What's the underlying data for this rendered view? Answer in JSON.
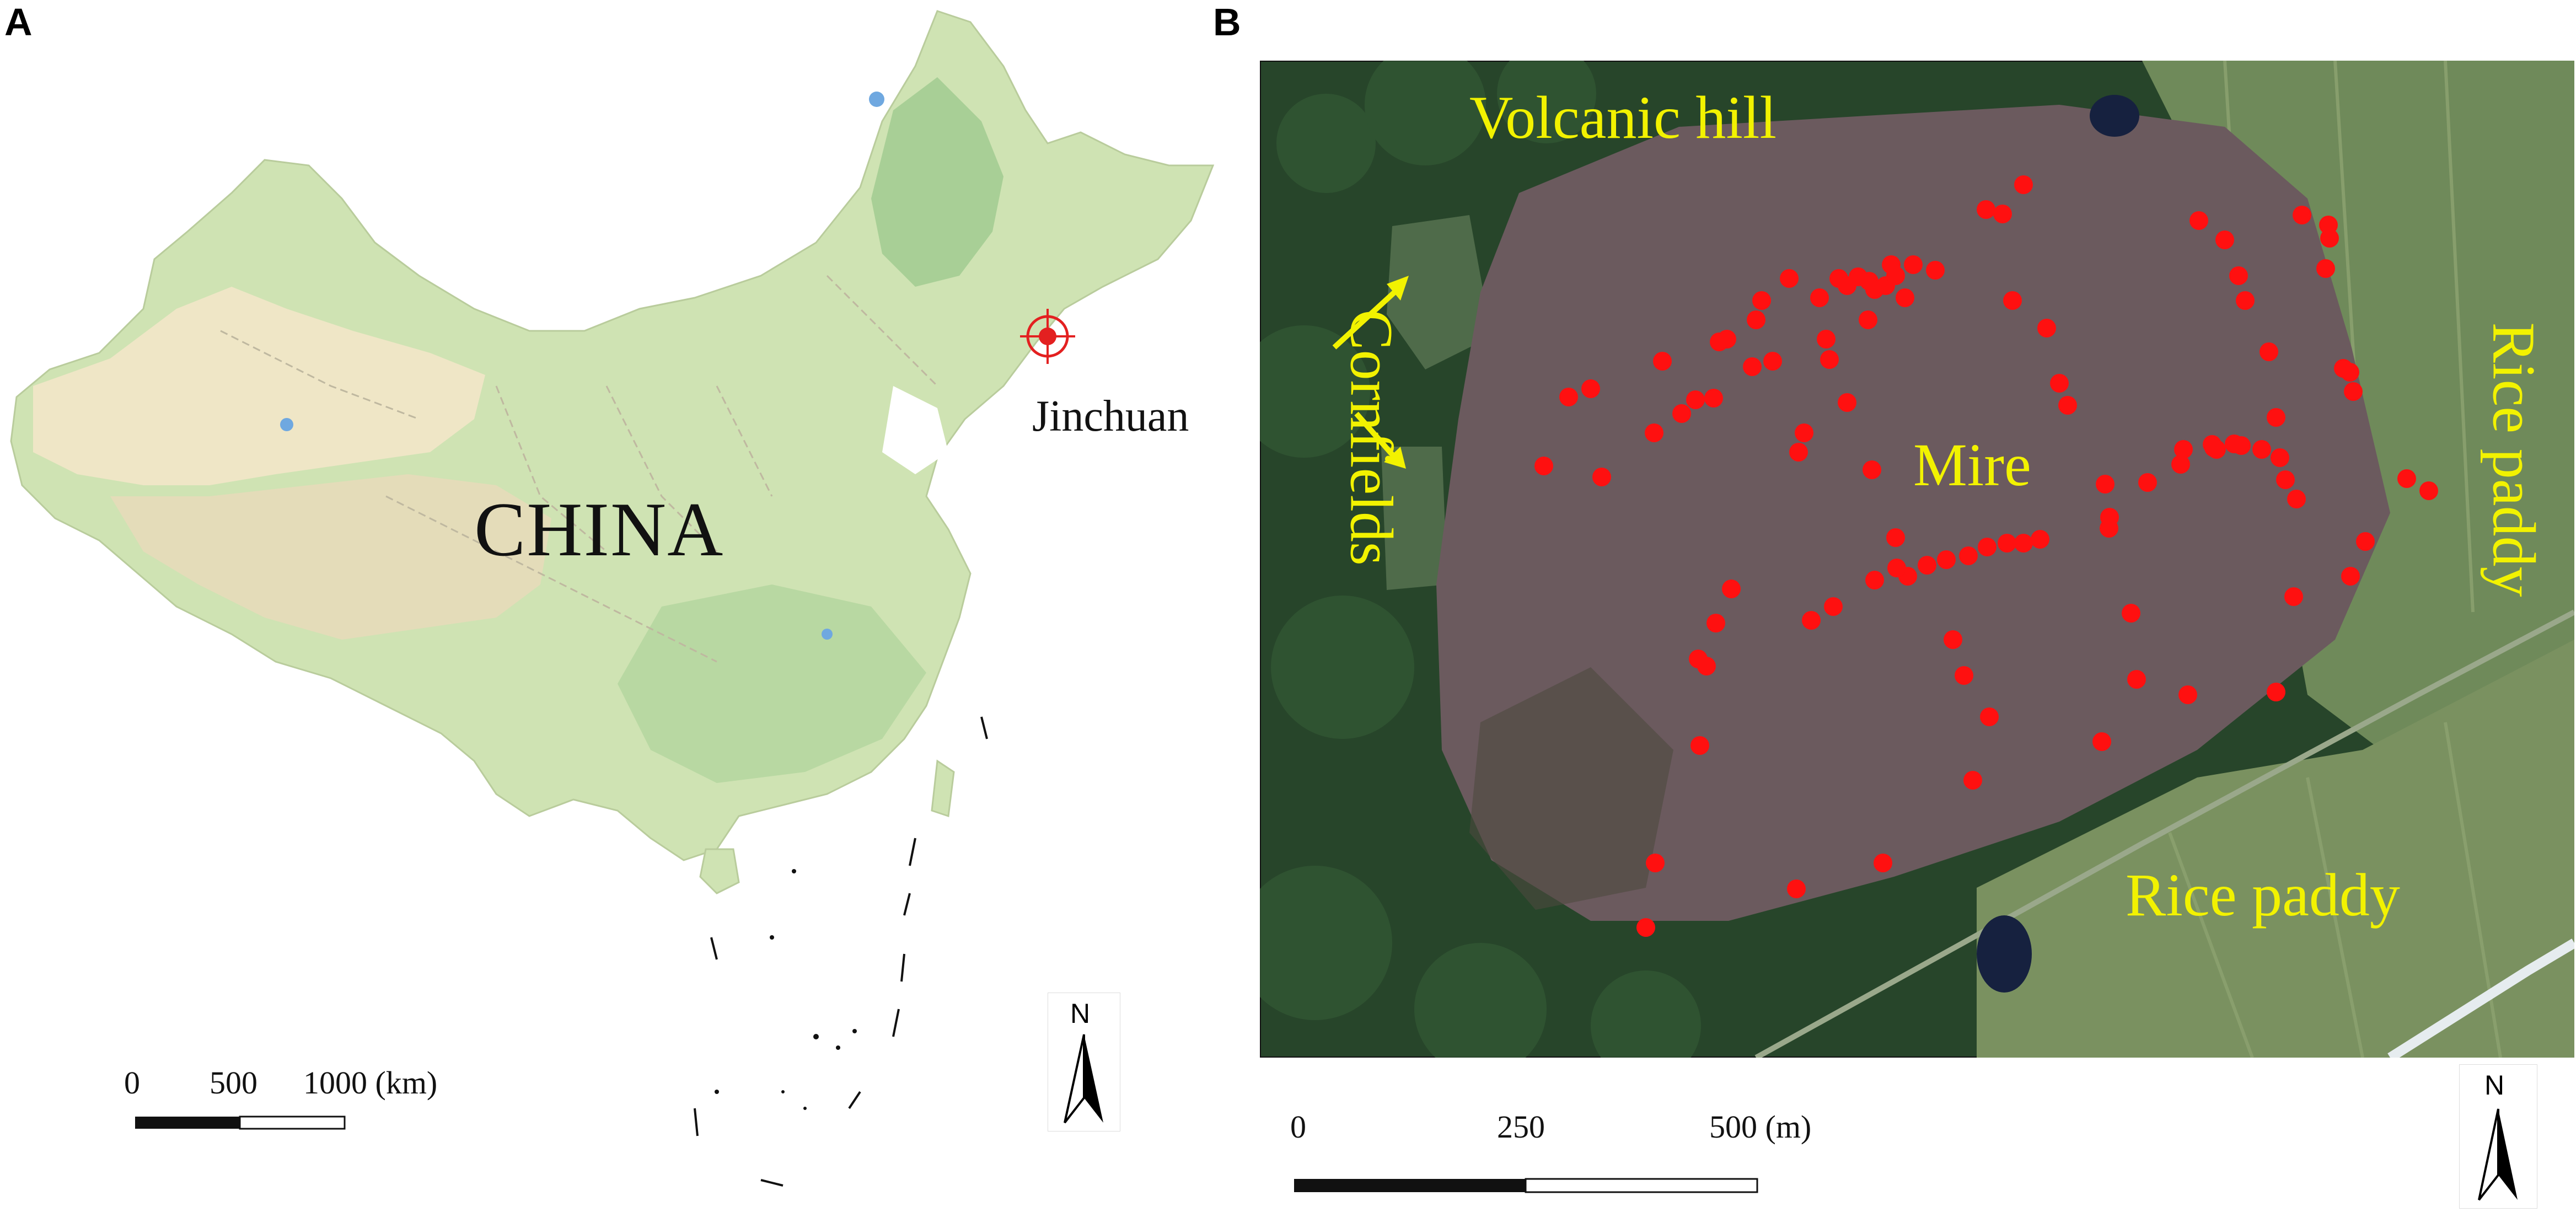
{
  "panels": {
    "a": {
      "letter": "A",
      "country_label": "CHINA",
      "site_label": "Jinchuan",
      "scale": {
        "t0": "0",
        "t1": "500",
        "t2": "1000 (km)"
      },
      "north": "N",
      "colors": {
        "land": "#cfe3b3",
        "forest": "#a8cf96",
        "desert": "#efe6c6",
        "plateau": "#e4dcb9",
        "water": "#6fa8e0",
        "marker": "#e32020"
      }
    },
    "b": {
      "letter": "B",
      "labels": {
        "volcanic_hill": "Volcanic hill",
        "cornfields": "Cornfields",
        "mire": "Mire",
        "rice_paddy_right": "Rice paddy",
        "rice_paddy_bottom": "Rice paddy"
      },
      "scale": {
        "t0": "0",
        "t1": "250",
        "t2": "500 (m)"
      },
      "north": "N",
      "colors": {
        "forest": "#27452a",
        "mire": "#6b5a5e",
        "paddy": "#6f8a5a",
        "label": "#f2f200",
        "point": "#ff1010"
      }
    }
  }
}
